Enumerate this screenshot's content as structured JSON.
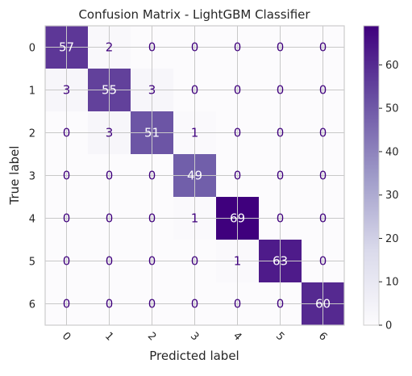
{
  "chart_data": {
    "type": "heatmap",
    "title": "Confusion Matrix - LightGBM Classifier",
    "xlabel": "Predicted label",
    "ylabel": "True label",
    "x_categories": [
      "0",
      "1",
      "2",
      "3",
      "4",
      "5",
      "6"
    ],
    "y_categories": [
      "0",
      "1",
      "2",
      "3",
      "4",
      "5",
      "6"
    ],
    "matrix": [
      [
        57,
        2,
        0,
        0,
        0,
        0,
        0
      ],
      [
        3,
        55,
        3,
        0,
        0,
        0,
        0
      ],
      [
        0,
        3,
        51,
        1,
        0,
        0,
        0
      ],
      [
        0,
        0,
        0,
        49,
        0,
        0,
        0
      ],
      [
        0,
        0,
        0,
        1,
        69,
        0,
        0
      ],
      [
        0,
        0,
        0,
        0,
        1,
        63,
        0
      ],
      [
        0,
        0,
        0,
        0,
        0,
        0,
        60
      ]
    ],
    "colormap": "Purples",
    "colorbar": {
      "range": [
        0,
        69
      ],
      "ticks": [
        0,
        10,
        20,
        30,
        40,
        50,
        60
      ]
    },
    "x_tick_rotation": 45,
    "grid": true
  }
}
